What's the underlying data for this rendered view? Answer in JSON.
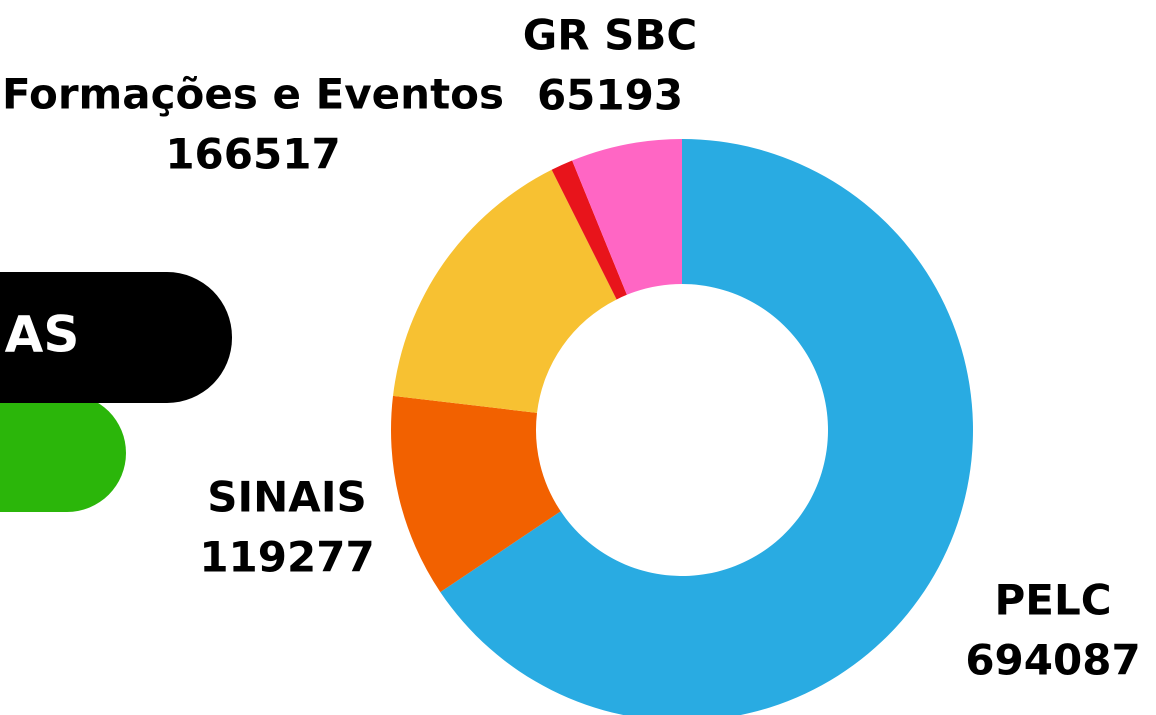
{
  "banner": {
    "text": "AS"
  },
  "chart_data": {
    "type": "donut",
    "categories": [
      "PELC",
      "SINAIS",
      "Formações e Eventos",
      null,
      "GR SBC"
    ],
    "values": [
      694087,
      119277,
      166517,
      13000,
      65193
    ],
    "colors": [
      "#29abe2",
      "#f26100",
      "#f7c132",
      "#e8141b",
      "#ff66c4"
    ]
  }
}
